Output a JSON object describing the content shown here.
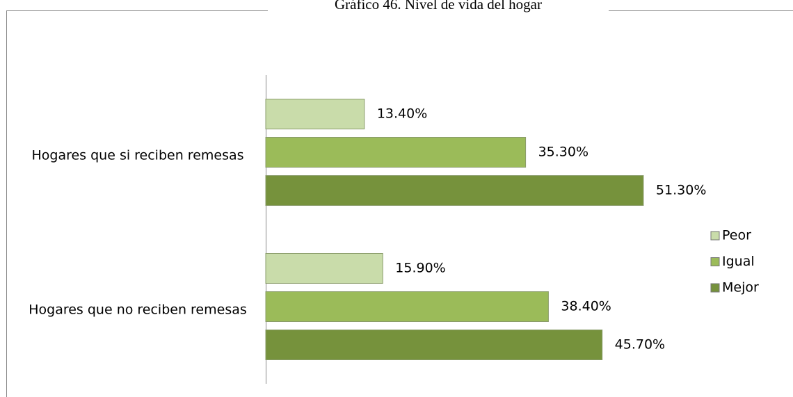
{
  "chart_data": {
    "type": "bar",
    "orientation": "horizontal",
    "title": "Gráfico 46. Nivel de vida del hogar",
    "categories": [
      "Hogares que si reciben remesas",
      "Hogares que no reciben remesas"
    ],
    "series": [
      {
        "name": "Peor",
        "color": "#c9dcaa",
        "values": [
          13.4,
          15.9
        ],
        "value_labels": [
          "13.40%",
          "15.90%"
        ]
      },
      {
        "name": "Igual",
        "color": "#9bbb59",
        "values": [
          35.3,
          38.4
        ],
        "value_labels": [
          "35.30%",
          "38.40%"
        ]
      },
      {
        "name": "Mejor",
        "color": "#76923c",
        "values": [
          51.3,
          45.7
        ],
        "value_labels": [
          "51.30%",
          "45.70%"
        ]
      }
    ],
    "xlim": [
      0,
      60
    ],
    "legend": "right"
  }
}
